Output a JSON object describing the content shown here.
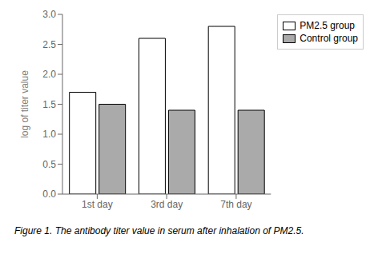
{
  "chart_data": {
    "type": "bar",
    "categories": [
      "1st day",
      "3rd day",
      "7th day"
    ],
    "series": [
      {
        "name": "PM2.5 group",
        "color": "#ffffff",
        "values": [
          1.7,
          2.6,
          2.8
        ]
      },
      {
        "name": "Control group",
        "color": "#aaaaaa",
        "values": [
          1.5,
          1.4,
          1.4
        ]
      }
    ],
    "y_label": "log of titer value",
    "ylim": [
      0.0,
      3.0
    ],
    "yticks": [
      {
        "value": 0,
        "label": "0.0"
      },
      0.5,
      {
        "value": 1,
        "label": "1.0"
      },
      1.5,
      {
        "value": 2,
        "label": "2.0"
      },
      2.5,
      {
        "value": 3,
        "label": "3.0"
      }
    ],
    "legend": "right",
    "grid": false,
    "caption": "Figure 1. The antibody titer value in serum after inhalation of PM2.5."
  }
}
